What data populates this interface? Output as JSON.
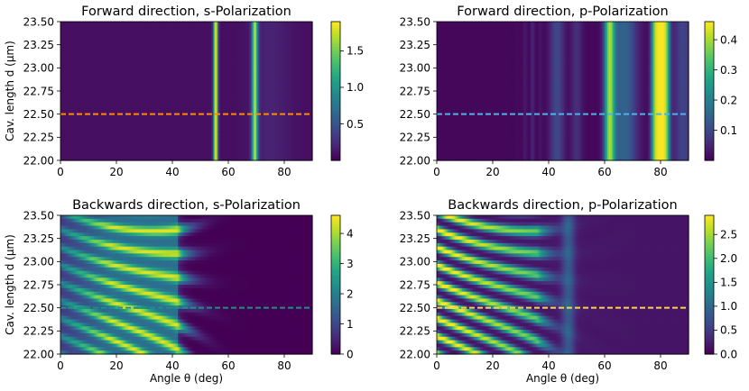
{
  "chart_data": [
    {
      "type": "heatmap",
      "title": "Forward direction, s-Polarization",
      "xlabel": "",
      "ylabel": "Cav. length d (µm)",
      "xlim": [
        0,
        90
      ],
      "ylim": [
        22.0,
        23.5
      ],
      "xticks": [
        "0",
        "20",
        "40",
        "60",
        "80"
      ],
      "yticks": [
        "22.00",
        "22.25",
        "22.50",
        "22.75",
        "23.00",
        "23.25",
        "23.50"
      ],
      "colorbar": {
        "range": [
          0,
          1.9
        ],
        "ticks": [
          "0.5",
          "1.0",
          "1.5"
        ]
      },
      "colormap": "viridis",
      "pattern": "forward_s",
      "reference_line": {
        "y": 22.5,
        "color": "#ff8c00",
        "style": "dashed"
      }
    },
    {
      "type": "heatmap",
      "title": "Forward direction, p-Polarization",
      "xlabel": "",
      "ylabel": "",
      "xlim": [
        0,
        90
      ],
      "ylim": [
        22.0,
        23.5
      ],
      "xticks": [
        "0",
        "20",
        "40",
        "60",
        "80"
      ],
      "yticks": [
        "22.00",
        "22.25",
        "22.50",
        "22.75",
        "23.00",
        "23.25",
        "23.50"
      ],
      "colorbar": {
        "range": [
          0,
          0.46
        ],
        "ticks": [
          "0.1",
          "0.2",
          "0.3",
          "0.4"
        ]
      },
      "colormap": "viridis",
      "pattern": "forward_p",
      "reference_line": {
        "y": 22.5,
        "color": "#4fb3e8",
        "style": "dashed"
      }
    },
    {
      "type": "heatmap",
      "title": "Backwards direction, s-Polarization",
      "xlabel": "Angle θ (deg)",
      "ylabel": "Cav. length d (µm)",
      "xlim": [
        0,
        90
      ],
      "ylim": [
        22.0,
        23.5
      ],
      "xticks": [
        "0",
        "20",
        "40",
        "60",
        "80"
      ],
      "yticks": [
        "22.00",
        "22.25",
        "22.50",
        "22.75",
        "23.00",
        "23.25",
        "23.50"
      ],
      "colorbar": {
        "range": [
          0,
          4.6
        ],
        "ticks": [
          "0",
          "1",
          "2",
          "3",
          "4"
        ]
      },
      "colormap": "viridis",
      "pattern": "backward_s",
      "reference_line": {
        "y": 22.5,
        "color": "#1f8f8a",
        "style": "dashed"
      }
    },
    {
      "type": "heatmap",
      "title": "Backwards direction, p-Polarization",
      "xlabel": "Angle θ (deg)",
      "ylabel": "",
      "xlim": [
        0,
        90
      ],
      "ylim": [
        22.0,
        23.5
      ],
      "xticks": [
        "0",
        "20",
        "40",
        "60",
        "80"
      ],
      "yticks": [
        "22.00",
        "22.25",
        "22.50",
        "22.75",
        "23.00",
        "23.25",
        "23.50"
      ],
      "colorbar": {
        "range": [
          0,
          2.9
        ],
        "ticks": [
          "0.0",
          "0.5",
          "1.0",
          "1.5",
          "2.0",
          "2.5"
        ]
      },
      "colormap": "viridis",
      "pattern": "backward_p",
      "reference_line": {
        "y": 22.5,
        "color": "#ffd24a",
        "style": "dashed"
      }
    }
  ]
}
